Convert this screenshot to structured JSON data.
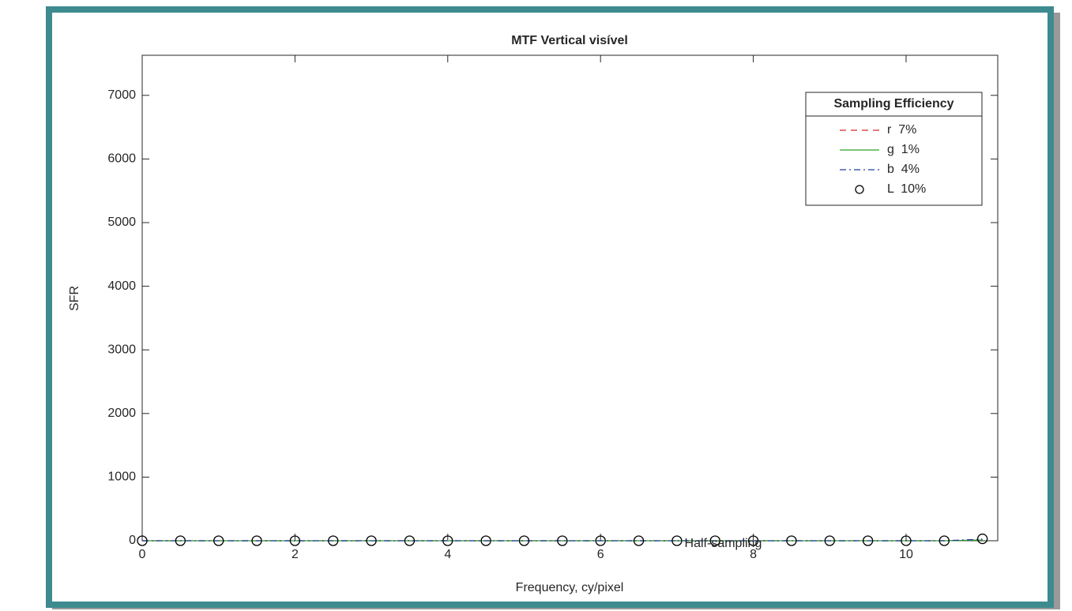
{
  "chart_data": {
    "type": "line",
    "title": "MTF Vertical visível",
    "xlabel": "Frequency, cy/pixel",
    "ylabel": "SFR",
    "x": [
      0,
      0.5,
      1,
      1.5,
      2,
      2.5,
      3,
      3.5,
      4,
      4.5,
      5,
      5.5,
      6,
      6.5,
      7,
      7.5,
      8,
      8.5,
      9,
      9.5,
      10,
      10.5,
      11
    ],
    "series": [
      {
        "name": "r  7%",
        "color": "#d62728",
        "line_style": "dashed",
        "marker": "none",
        "values": [
          0,
          0,
          0,
          0,
          0,
          0,
          0,
          0,
          0,
          0,
          0,
          0,
          0,
          0,
          0,
          0,
          0,
          0,
          0,
          0,
          0,
          0,
          10
        ]
      },
      {
        "name": "g  1%",
        "color": "#2ca02c",
        "line_style": "solid",
        "marker": "none",
        "values": [
          0,
          0,
          0,
          0,
          0,
          0,
          0,
          0,
          0,
          0,
          0,
          0,
          0,
          0,
          0,
          0,
          0,
          0,
          0,
          0,
          0,
          0,
          10
        ]
      },
      {
        "name": "b  4%",
        "color": "#1f3fa0",
        "line_style": "dashdot",
        "marker": "none",
        "values": [
          0,
          0,
          0,
          0,
          0,
          0,
          0,
          0,
          0,
          0,
          0,
          0,
          0,
          0,
          0,
          0,
          0,
          0,
          0,
          0,
          0,
          0,
          25
        ]
      },
      {
        "name": "L  10%",
        "color": "#000000",
        "line_style": "none",
        "marker": "o",
        "values": [
          0,
          0,
          0,
          0,
          0,
          0,
          0,
          0,
          0,
          0,
          0,
          0,
          0,
          0,
          0,
          0,
          0,
          0,
          0,
          0,
          0,
          0,
          30
        ]
      }
    ],
    "legend_title": "Sampling Efficiency",
    "legend": "upper right",
    "annotation": {
      "text": "Half-sampling",
      "x": 7.1,
      "y": 0
    },
    "xlim": [
      0,
      11.2
    ],
    "xticks": [
      0,
      2,
      4,
      6,
      8,
      10
    ],
    "ylim": [
      0,
      7630
    ],
    "yticks": [
      0,
      1000,
      2000,
      3000,
      4000,
      5000,
      6000,
      7000
    ]
  }
}
